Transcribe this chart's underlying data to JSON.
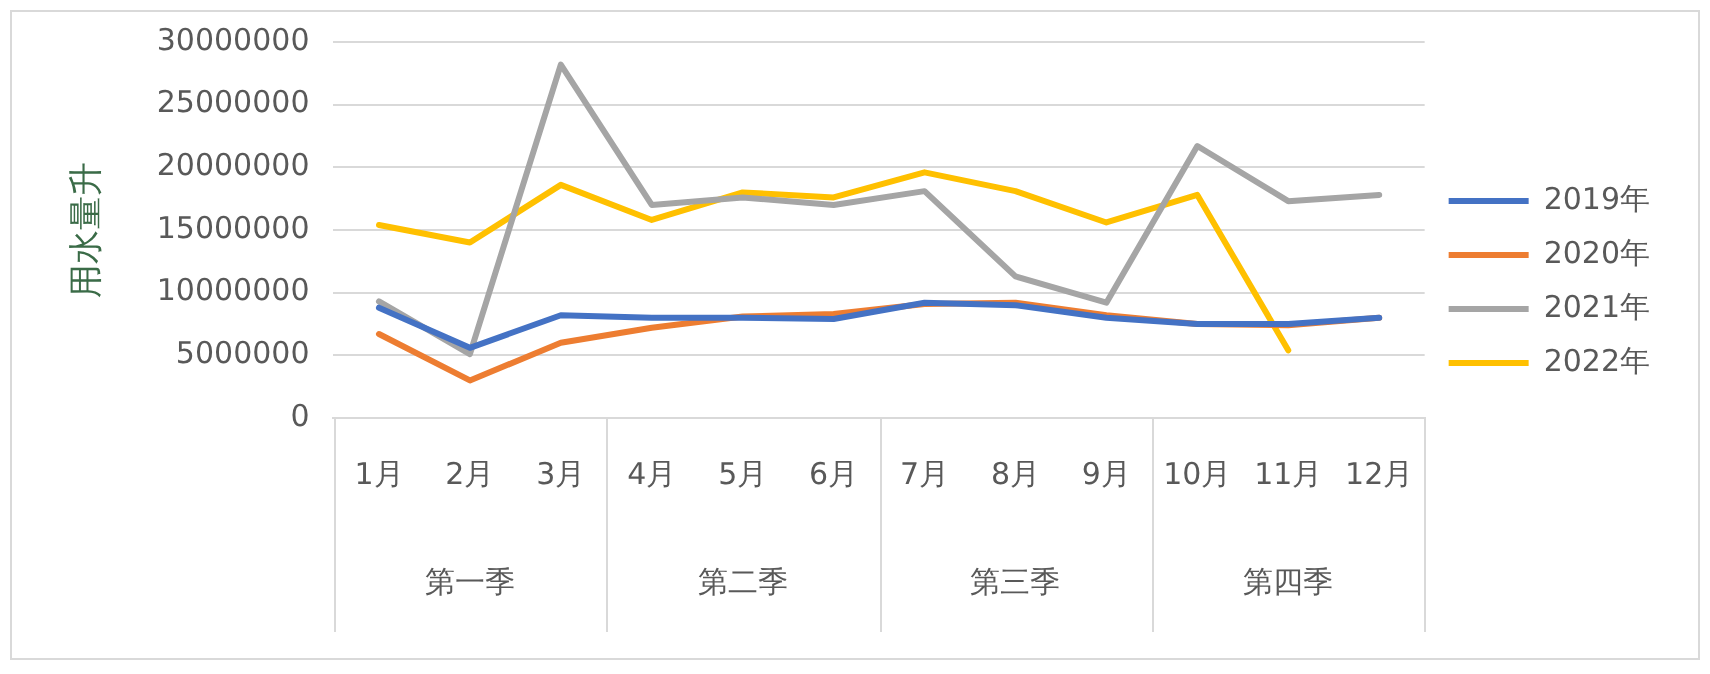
{
  "chart_data": {
    "type": "line",
    "ylabel": "用水量升",
    "categories": [
      "1月",
      "2月",
      "3月",
      "4月",
      "5月",
      "6月",
      "7月",
      "8月",
      "9月",
      "10月",
      "11月",
      "12月"
    ],
    "series": [
      {
        "name": "2019年",
        "color": "#4472c4",
        "values": [
          8800000,
          5600000,
          8200000,
          8000000,
          8000000,
          7900000,
          9200000,
          9000000,
          8000000,
          7500000,
          7500000,
          8000000
        ]
      },
      {
        "name": "2020年",
        "color": "#ed7d31",
        "values": [
          6700000,
          3000000,
          6000000,
          7200000,
          8100000,
          8300000,
          9100000,
          9200000,
          8200000,
          7500000,
          7400000,
          8000000
        ]
      },
      {
        "name": "2021年",
        "color": "#a5a5a5",
        "values": [
          9300000,
          5100000,
          28200000,
          17000000,
          17600000,
          17000000,
          18100000,
          11300000,
          9200000,
          21700000,
          17300000,
          17800000
        ]
      },
      {
        "name": "2022年",
        "color": "#ffc000",
        "values": [
          15400000,
          14000000,
          18600000,
          15800000,
          18000000,
          17600000,
          19600000,
          18100000,
          15600000,
          17800000,
          5400000,
          null
        ]
      }
    ],
    "ylim": [
      0,
      30000000
    ],
    "yticks": [
      0,
      5000000,
      10000000,
      15000000,
      20000000,
      25000000,
      30000000
    ],
    "annotations": [
      "第一季",
      "第二季",
      "第三季",
      "第四季"
    ],
    "grid": "y",
    "legend": "right",
    "marker": "none",
    "line_style": "solid"
  }
}
